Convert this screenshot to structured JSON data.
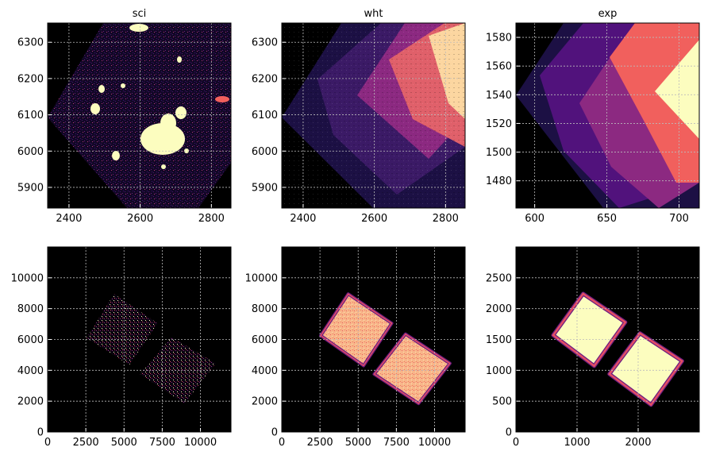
{
  "colors": {
    "background": "#000000",
    "low": "#2a1160",
    "midlow": "#51127c",
    "mid": "#b73779",
    "midhigh": "#f1605d",
    "high": "#fcfdbf",
    "outline_purple": "#6a1c81",
    "outline_red": "#e34e64",
    "grid": "#bbbbbb"
  },
  "chart_data": [
    {
      "type": "heatmap",
      "title": "sci",
      "xlim": [
        2340,
        2855
      ],
      "ylim": [
        5843,
        6353
      ],
      "xticks": [
        2400,
        2600,
        2800
      ],
      "yticks": [
        5900,
        6000,
        6100,
        6200,
        6300
      ],
      "colormap": "magma",
      "content": "science image cutout: rotated sparse-noise footprint with bright sources"
    },
    {
      "type": "heatmap",
      "title": "wht",
      "xlim": [
        2340,
        2855
      ],
      "ylim": [
        5843,
        6353
      ],
      "xticks": [
        2400,
        2600,
        2800
      ],
      "yticks": [
        5900,
        6000,
        6100,
        6200,
        6300
      ],
      "colormap": "magma",
      "content": "weight map cutout: overlapping rotated exposure tiles"
    },
    {
      "type": "heatmap",
      "title": "exp",
      "xlim": [
        587,
        714
      ],
      "ylim": [
        1461,
        1590
      ],
      "xticks": [
        600,
        650,
        700
      ],
      "yticks": [
        1480,
        1500,
        1520,
        1540,
        1560,
        1580
      ],
      "colormap": "magma",
      "content": "exposure map cutout: overlapping rotated exposure tiles"
    },
    {
      "type": "heatmap",
      "title": "",
      "xlim": [
        0,
        12000
      ],
      "ylim": [
        0,
        12000
      ],
      "xticks": [
        0,
        2500,
        5000,
        7500,
        10000
      ],
      "yticks": [
        0,
        2000,
        4000,
        6000,
        8000,
        10000
      ],
      "colormap": "magma",
      "content": "full science image: two rotated square footprints",
      "footprints": [
        {
          "corners": [
            [
              2550,
              6100
            ],
            [
              4350,
              8950
            ],
            [
              7200,
              7050
            ],
            [
              5350,
              4350
            ]
          ]
        },
        {
          "corners": [
            [
              6050,
              3750
            ],
            [
              8100,
              6150
            ],
            [
              11000,
              4450
            ],
            [
              8950,
              1850
            ]
          ]
        }
      ]
    },
    {
      "type": "heatmap",
      "title": "",
      "xlim": [
        0,
        12000
      ],
      "ylim": [
        0,
        12000
      ],
      "xticks": [
        0,
        2500,
        5000,
        7500,
        10000
      ],
      "yticks": [
        0,
        2000,
        4000,
        6000,
        8000,
        10000
      ],
      "colormap": "magma",
      "content": "full weight map: two rotated square footprints",
      "footprints": [
        {
          "corners": [
            [
              2550,
              6250
            ],
            [
              4350,
              8950
            ],
            [
              7200,
              7050
            ],
            [
              5350,
              4300
            ]
          ]
        },
        {
          "corners": [
            [
              6050,
              3750
            ],
            [
              8100,
              6350
            ],
            [
              11000,
              4450
            ],
            [
              8950,
              1850
            ]
          ]
        }
      ]
    },
    {
      "type": "heatmap",
      "title": "",
      "xlim": [
        0,
        3000
      ],
      "ylim": [
        0,
        3000
      ],
      "xticks": [
        0,
        1000,
        2000
      ],
      "yticks": [
        0,
        500,
        1000,
        1500,
        2000,
        2500
      ],
      "colormap": "magma",
      "content": "full exposure map: two rotated square footprints",
      "footprints": [
        {
          "corners": [
            [
              610,
              1570
            ],
            [
              1100,
              2240
            ],
            [
              1790,
              1780
            ],
            [
              1280,
              1070
            ]
          ]
        },
        {
          "corners": [
            [
              1530,
              940
            ],
            [
              2030,
              1600
            ],
            [
              2720,
              1150
            ],
            [
              2210,
              440
            ]
          ]
        }
      ]
    }
  ]
}
